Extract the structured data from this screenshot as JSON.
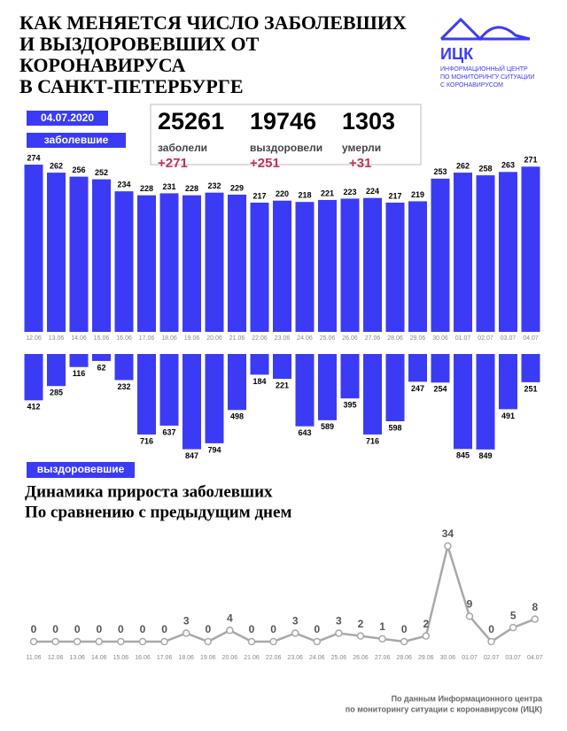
{
  "header": {
    "title_lines": [
      "КАК МЕНЯЕТСЯ ЧИСЛО ЗАБОЛЕВШИХ",
      "И ВЫЗДОРОВЕВШИХ ОТ",
      "КОРОНАВИРУСА",
      "В САНКТ-ПЕТЕРБУРГЕ"
    ],
    "logo": "ИЦК",
    "logo_lines": [
      "ИНФОРМАЦИОННЫЙ ЦЕНТР",
      "ПО МОНИТОРИНГУ СИТУАЦИИ",
      "С КОРОНАВИРУСОМ"
    ],
    "date": "04.07.2020"
  },
  "stats": [
    {
      "value": 25261,
      "label": "заболели",
      "delta": "+271"
    },
    {
      "value": 19746,
      "label": "выздоровели",
      "delta": "+251"
    },
    {
      "value": 1303,
      "label": "умерли",
      "delta": "+31"
    }
  ],
  "chart_data": [
    {
      "type": "bar",
      "title": "заболевшие",
      "color": "#3b3bf5",
      "categories": [
        "12.06",
        "13.06",
        "14.06",
        "15.06",
        "16.06",
        "17.06",
        "18.06",
        "19.06",
        "20.06",
        "21.06",
        "22.06",
        "23.06",
        "24.06",
        "25.06",
        "26.06",
        "27.06",
        "28.06",
        "29.06",
        "30.06",
        "01.07",
        "02.07",
        "03.07",
        "04.07"
      ],
      "values": [
        274,
        262,
        256,
        252,
        234,
        228,
        231,
        228,
        232,
        229,
        217,
        220,
        218,
        221,
        223,
        224,
        217,
        219,
        253,
        262,
        258,
        263,
        271
      ],
      "ylim": [
        23,
        290
      ]
    },
    {
      "type": "bar",
      "title": "выздоровевшие",
      "color": "#3b3bf5",
      "values": [
        412,
        285,
        116,
        62,
        232,
        716,
        637,
        847,
        794,
        498,
        184,
        221,
        643,
        589,
        395,
        716,
        598,
        247,
        254,
        845,
        849,
        491,
        251
      ],
      "ylim": [
        0,
        850
      ]
    },
    {
      "type": "line",
      "title_lines": [
        "Динамика прироста заболевших",
        "По сравнению с предыдущим днем"
      ],
      "color": "#a8a8a8",
      "categories": [
        "11.06",
        "12.06",
        "13.06",
        "14.06",
        "15.06",
        "16.06",
        "17.06",
        "18.06",
        "19.06",
        "20.06",
        "21.06",
        "22.06",
        "23.06",
        "24.06",
        "25.06",
        "26.06",
        "27.06",
        "28.06",
        "29.06",
        "30.06",
        "01.07",
        "02.07",
        "03.07",
        "04.07"
      ],
      "values": [
        0,
        0,
        0,
        0,
        0,
        0,
        0,
        3,
        0,
        4,
        0,
        0,
        3,
        0,
        3,
        2,
        1,
        0,
        2,
        34,
        9,
        0,
        5,
        8
      ],
      "ylim": [
        0,
        34
      ]
    }
  ],
  "footer": [
    "По данным Информационного центра",
    "по мониторингу ситуации с коронавирусом (ИЦК)"
  ]
}
